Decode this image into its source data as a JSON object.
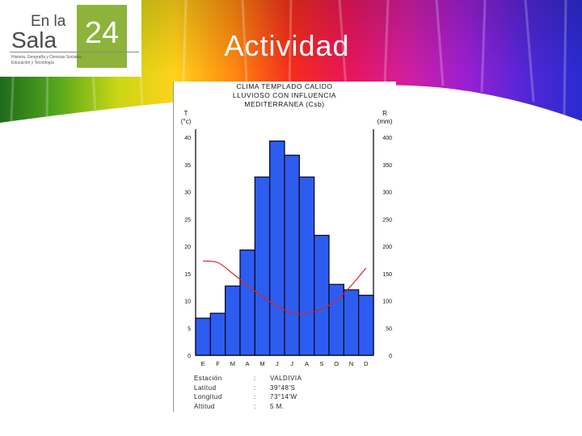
{
  "slide": {
    "title": "Actividad"
  },
  "logo": {
    "line1": "En la",
    "line2": "Sala",
    "number": "24",
    "sub1": "Historia, Geografía y Ciencias Sociales",
    "sub2": "Educación y Tecnología"
  },
  "chart_data": {
    "type": "bar+line",
    "title_lines": [
      "CLIMA TEMPLADO CALIDO",
      "LLUVIOSO CON INFLUENCIA",
      "MEDITERRANEA (Csb)"
    ],
    "left_axis_label": [
      "T",
      "(°c)"
    ],
    "right_axis_label": [
      "R",
      "(mm)"
    ],
    "categories": [
      "E",
      "F",
      "M",
      "A",
      "M",
      "J",
      "J",
      "A",
      "S",
      "O",
      "N",
      "D"
    ],
    "precipitation_mm": [
      68,
      77,
      127,
      193,
      327,
      393,
      367,
      327,
      220,
      130,
      120,
      110
    ],
    "temperature_c": [
      17.3,
      17.0,
      15.0,
      12.8,
      10.8,
      9.0,
      7.8,
      7.6,
      8.5,
      10.0,
      12.8,
      16.0
    ],
    "left_ticks": [
      0,
      5,
      10,
      15,
      20,
      25,
      30,
      35,
      40
    ],
    "right_ticks": [
      0,
      50,
      100,
      150,
      200,
      250,
      300,
      350,
      400
    ],
    "ylim_temperature": [
      0,
      40
    ],
    "ylim_precipitation": [
      0,
      400
    ],
    "colors": {
      "bars": "#2d5df0",
      "line": "#dd2222"
    },
    "station": {
      "rows": [
        {
          "label": "Estación",
          "sep": ":",
          "value": "VALDIVIA"
        },
        {
          "label": "Latitud",
          "sep": ":",
          "value": "39°48'S"
        },
        {
          "label": "Longitud",
          "sep": ":",
          "value": "73°14'W"
        },
        {
          "label": "Altitud",
          "sep": ":",
          "value": "5 M."
        }
      ]
    }
  }
}
